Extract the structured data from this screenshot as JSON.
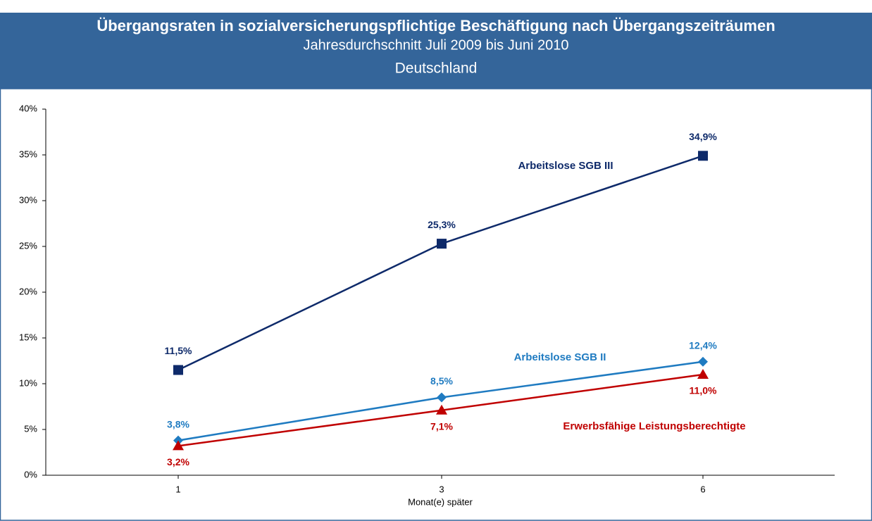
{
  "chart_data": {
    "type": "line",
    "title": "Übergangsraten in sozialversicherungspflichtige Beschäftigung  nach Übergangszeiträumen",
    "subtitle": "Jahresdurchschnitt Juli 2009 bis Juni 2010",
    "region": "Deutschland",
    "x_label": "Monat(e) später",
    "categories": [
      "1",
      "3",
      "6"
    ],
    "ylim": [
      0,
      40
    ],
    "yticks": [
      {
        "value": 0,
        "label": "0%"
      },
      {
        "value": 5,
        "label": "5%"
      },
      {
        "value": 10,
        "label": "10%"
      },
      {
        "value": 15,
        "label": "15%"
      },
      {
        "value": 20,
        "label": "20%"
      },
      {
        "value": 25,
        "label": "25%"
      },
      {
        "value": 30,
        "label": "30%"
      },
      {
        "value": 35,
        "label": "35%"
      },
      {
        "value": 40,
        "label": "40%"
      }
    ],
    "series": [
      {
        "name": "Arbeitslose SGB III",
        "color": "#0e2a6a",
        "marker": "square",
        "values": [
          11.5,
          25.3,
          34.9
        ],
        "value_labels": [
          "11,5%",
          "25,3%",
          "34,9%"
        ]
      },
      {
        "name": "Arbeitslose SGB II",
        "color": "#1f7bc1",
        "marker": "diamond",
        "values": [
          3.8,
          8.5,
          12.4
        ],
        "value_labels": [
          "3,8%",
          "8,5%",
          "12,4%"
        ]
      },
      {
        "name": "Erwerbsfähige  Leistungsberechtigte",
        "color": "#c00000",
        "marker": "triangle",
        "values": [
          3.2,
          7.1,
          11.0
        ],
        "value_labels": [
          "3,2%",
          "7,1%",
          "11,0%"
        ]
      }
    ]
  }
}
